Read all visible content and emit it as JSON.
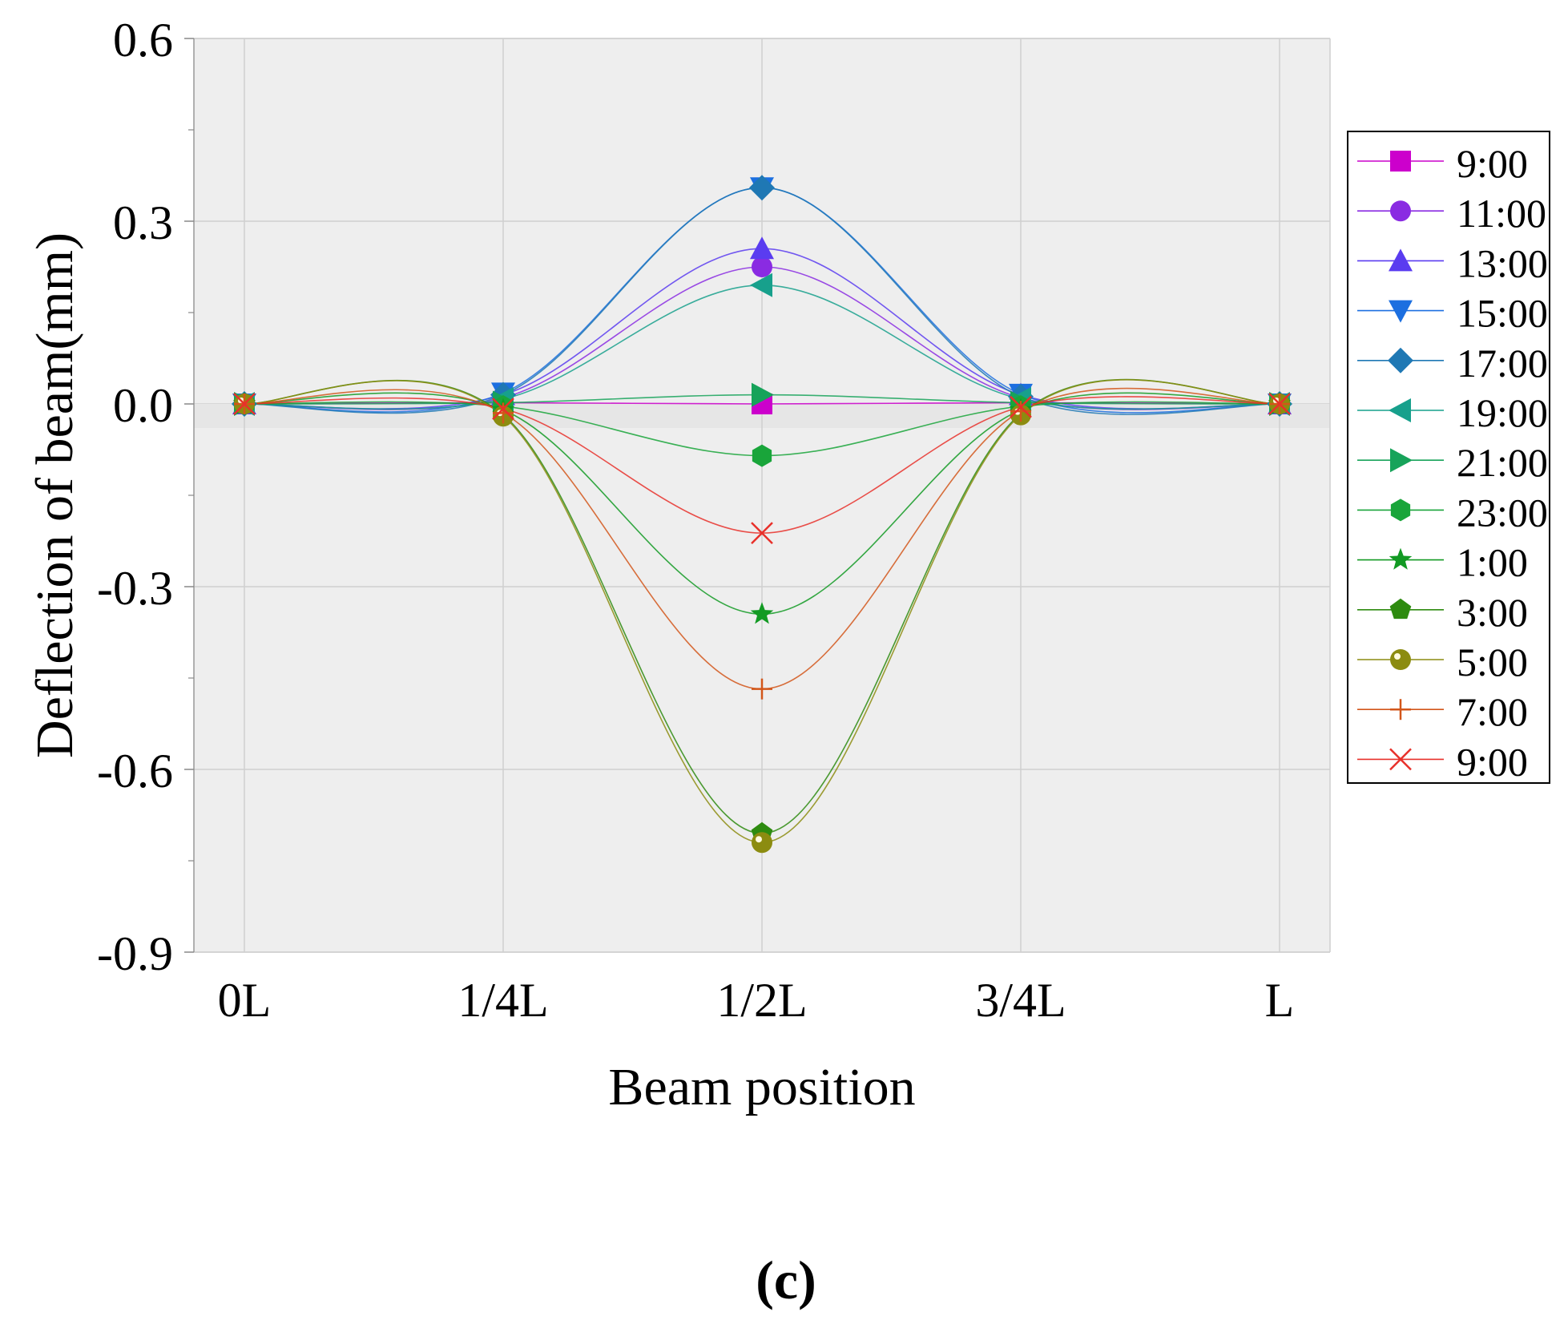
{
  "panel_label": "(c)",
  "chart_data": {
    "type": "line",
    "xlabel": "Beam position",
    "ylabel": "Deflection of beam(mm)",
    "categories": [
      "0L",
      "1/4L",
      "1/2L",
      "3/4L",
      "L"
    ],
    "x": [
      0,
      0.25,
      0.5,
      0.75,
      1.0
    ],
    "ylim": [
      -0.9,
      0.6
    ],
    "yticks": [
      0.6,
      0.3,
      0.0,
      -0.3,
      -0.6,
      -0.9
    ],
    "ytick_labels": [
      "0.6",
      "0.3",
      "0.0",
      "-0.3",
      "-0.6",
      "-0.9"
    ],
    "grid": true,
    "legend_position": "right",
    "series": [
      {
        "name": "9:00",
        "marker": "square",
        "color": "#cc00cc",
        "values": [
          0,
          0.002,
          0.0,
          0.002,
          0
        ]
      },
      {
        "name": "11:00",
        "marker": "circle",
        "color": "#8a2be2",
        "values": [
          0,
          0.01,
          0.225,
          0.01,
          0
        ]
      },
      {
        "name": "13:00",
        "marker": "triangle-up",
        "color": "#5a3cf0",
        "values": [
          0,
          0.015,
          0.255,
          0.015,
          0
        ]
      },
      {
        "name": "15:00",
        "marker": "triangle-down",
        "color": "#1c6fe0",
        "values": [
          0,
          0.018,
          0.355,
          0.016,
          0
        ]
      },
      {
        "name": "17:00",
        "marker": "diamond",
        "color": "#1f78b4",
        "values": [
          0,
          0.015,
          0.355,
          0.012,
          0
        ]
      },
      {
        "name": "19:00",
        "marker": "triangle-left",
        "color": "#17a08c",
        "values": [
          0,
          0.008,
          0.195,
          0.008,
          0
        ]
      },
      {
        "name": "21:00",
        "marker": "triangle-right",
        "color": "#17a35a",
        "values": [
          0,
          0.002,
          0.015,
          0.002,
          0
        ]
      },
      {
        "name": "23:00",
        "marker": "hexagon",
        "color": "#19a53a",
        "values": [
          0,
          -0.004,
          -0.085,
          -0.004,
          0
        ]
      },
      {
        "name": "1:00",
        "marker": "star",
        "color": "#129a23",
        "values": [
          0,
          -0.01,
          -0.345,
          -0.01,
          0
        ]
      },
      {
        "name": "3:00",
        "marker": "pentagon",
        "color": "#2e8b10",
        "values": [
          0,
          -0.018,
          -0.705,
          -0.016,
          0
        ]
      },
      {
        "name": "5:00",
        "marker": "ball",
        "color": "#8c8c10",
        "values": [
          0,
          -0.02,
          -0.72,
          -0.018,
          0
        ]
      },
      {
        "name": "7:00",
        "marker": "plus",
        "color": "#d2561a",
        "values": [
          0,
          -0.015,
          -0.468,
          -0.012,
          0
        ]
      },
      {
        "name": "9:00",
        "marker": "x",
        "color": "#e8302a",
        "values": [
          0,
          -0.008,
          -0.212,
          -0.005,
          0
        ]
      }
    ]
  }
}
